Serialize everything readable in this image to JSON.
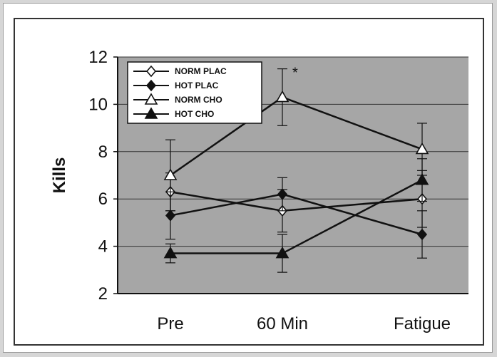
{
  "chart_data": {
    "type": "line",
    "title": "",
    "xlabel": "",
    "ylabel": "Kills",
    "categories": [
      "Pre",
      "60 Min",
      "Fatigue"
    ],
    "ylim": [
      2,
      12
    ],
    "yticks": [
      2,
      4,
      6,
      8,
      10,
      12
    ],
    "grid": true,
    "legend_position": "top-left",
    "series": [
      {
        "name": "NORM PLAC",
        "marker": "open-diamond",
        "values": [
          6.3,
          5.5,
          6.0
        ],
        "errors": [
          0.8,
          0.9,
          1.2
        ]
      },
      {
        "name": "HOT PLAC",
        "marker": "filled-diamond",
        "values": [
          5.3,
          6.2,
          4.5
        ],
        "errors": [
          1.0,
          0.7,
          1.0
        ]
      },
      {
        "name": "NORM CHO",
        "marker": "open-triangle",
        "values": [
          7.0,
          10.3,
          8.1
        ],
        "errors": [
          1.5,
          1.2,
          1.1
        ]
      },
      {
        "name": "HOT CHO",
        "marker": "filled-triangle",
        "values": [
          3.7,
          3.7,
          6.8
        ],
        "errors": [
          0.4,
          0.8,
          0.9
        ]
      }
    ],
    "annotations": [
      {
        "text": "*",
        "category": "60 Min"
      }
    ],
    "colors": {
      "plot_bg": "#a6a6a6",
      "line": "#111111",
      "grid": "#333333"
    }
  }
}
